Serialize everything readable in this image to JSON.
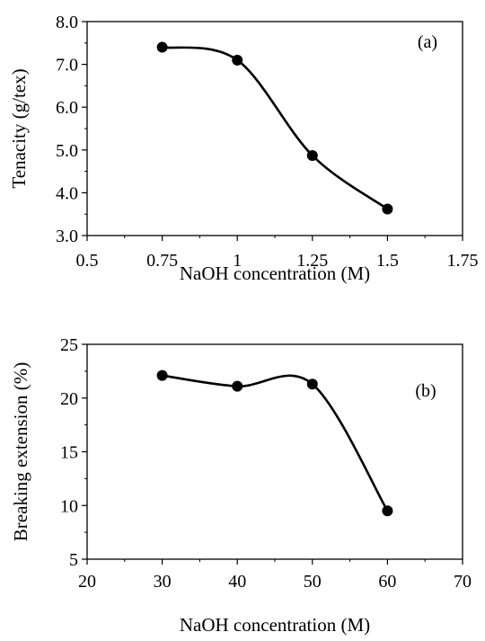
{
  "chart_data": [
    {
      "type": "line",
      "panel_label": "(a)",
      "xlabel": "NaOH concentration (M)",
      "ylabel": "Tenacity (g/tex)",
      "xlim": [
        0.5,
        1.75
      ],
      "ylim": [
        3.0,
        8.0
      ],
      "xticks": [
        "0.5",
        "0.75",
        "1",
        "1.25",
        "1.5",
        "1.75"
      ],
      "yticks": [
        "3.0",
        "4.0",
        "5.0",
        "6.0",
        "7.0",
        "8.0"
      ],
      "x": [
        0.75,
        1.0,
        1.25,
        1.5
      ],
      "y": [
        7.4,
        7.1,
        4.87,
        3.62
      ],
      "smooth": true,
      "marker": "circle",
      "color": "#000000",
      "grid": false
    },
    {
      "type": "line",
      "panel_label": "(b)",
      "xlabel": "NaOH concentration (M)",
      "ylabel": "Breaking extension (%)",
      "xlim": [
        20,
        70
      ],
      "ylim": [
        5,
        25
      ],
      "xticks": [
        "20",
        "30",
        "40",
        "50",
        "60",
        "70"
      ],
      "yticks": [
        "5",
        "10",
        "15",
        "20",
        "25"
      ],
      "x": [
        30,
        40,
        50,
        60
      ],
      "y": [
        22.1,
        21.1,
        21.3,
        9.5
      ],
      "smooth": true,
      "marker": "circle",
      "color": "#000000",
      "grid": false
    }
  ]
}
